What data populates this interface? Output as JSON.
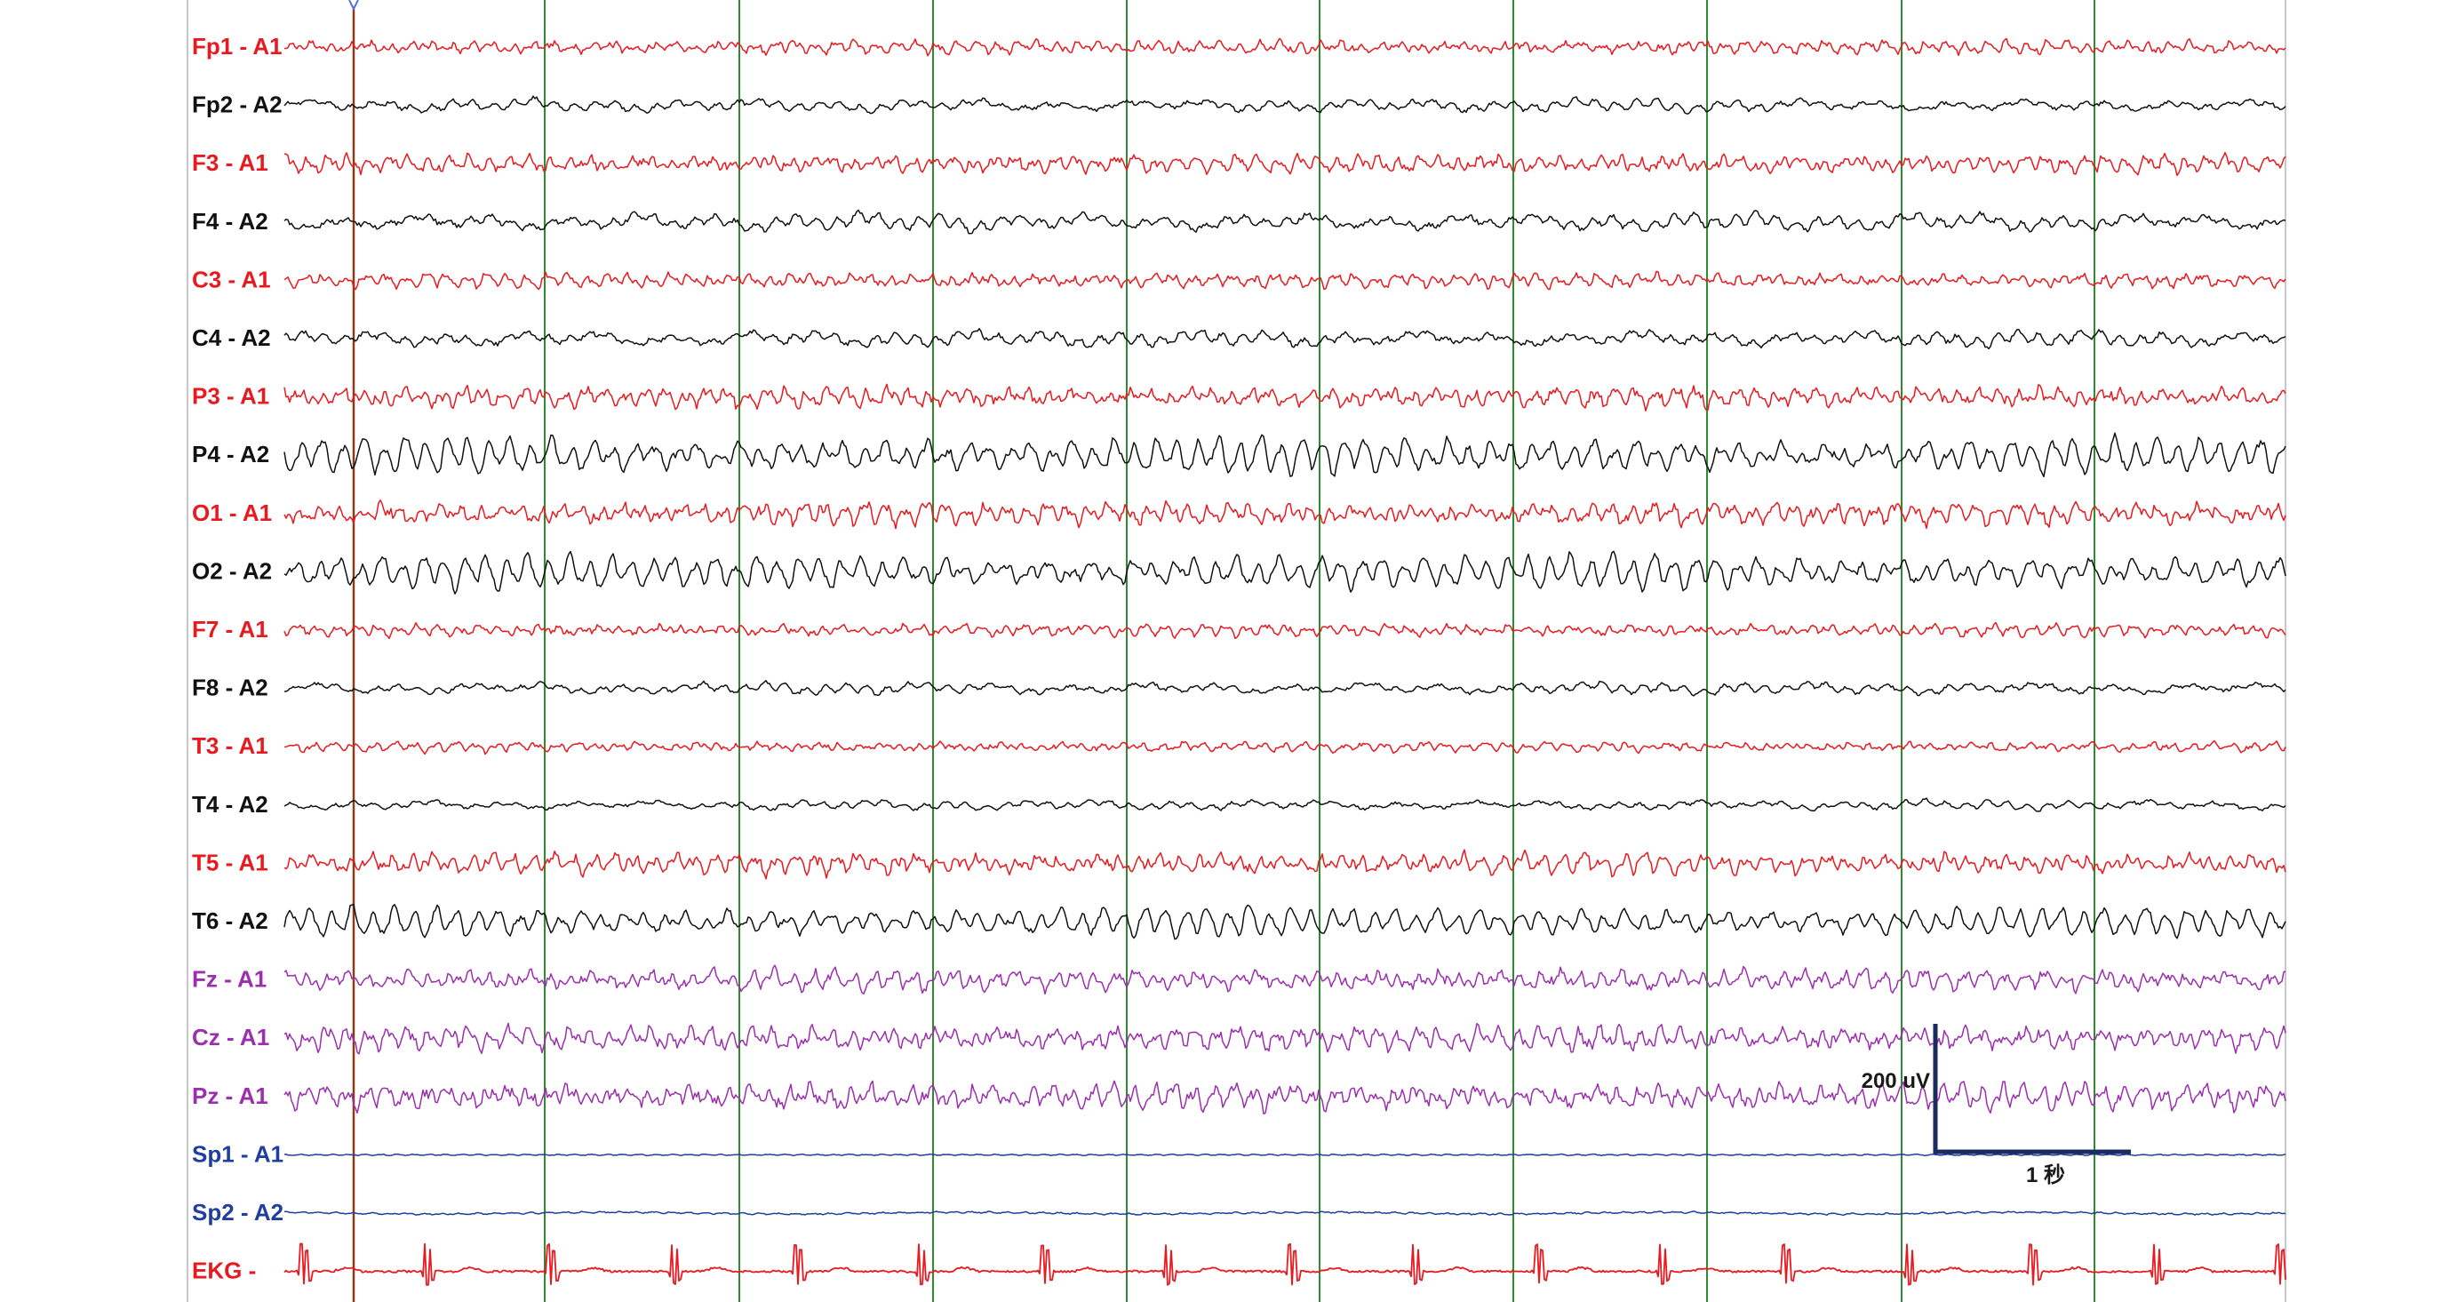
{
  "colors": {
    "background": "#ffffff",
    "red": "#e8191f",
    "black": "#111111",
    "purple": "#9b2fae",
    "blue": "#1f3f9f",
    "grid_line": "#2e8b2e",
    "cursor_line": "#8b3a1a",
    "border": "#c8c8c8",
    "scale_bar": "#1c2a5e"
  },
  "channels": [
    {
      "label": "Fp1 - A1",
      "color": "red",
      "style": "alpha-fast",
      "amp": 0.55
    },
    {
      "label": "Fp2 - A2",
      "color": "black",
      "style": "slow-wave",
      "amp": 0.6
    },
    {
      "label": "F3 - A1",
      "color": "red",
      "style": "alpha-fast",
      "amp": 0.75
    },
    {
      "label": "F4 - A2",
      "color": "black",
      "style": "slow-wave",
      "amp": 0.8
    },
    {
      "label": "C3 - A1",
      "color": "red",
      "style": "alpha-fast",
      "amp": 0.6
    },
    {
      "label": "C4 - A2",
      "color": "black",
      "style": "slow-wave",
      "amp": 0.75
    },
    {
      "label": "P3 - A1",
      "color": "red",
      "style": "alpha-fast",
      "amp": 0.85
    },
    {
      "label": "P4 - A2",
      "color": "black",
      "style": "alpha-big",
      "amp": 1.15
    },
    {
      "label": "O1 - A1",
      "color": "red",
      "style": "alpha-fast",
      "amp": 0.9
    },
    {
      "label": "O2 - A2",
      "color": "black",
      "style": "alpha-big",
      "amp": 1.1
    },
    {
      "label": "F7 - A1",
      "color": "red",
      "style": "alpha-fast",
      "amp": 0.5
    },
    {
      "label": "F8 - A2",
      "color": "black",
      "style": "slow-wave",
      "amp": 0.55
    },
    {
      "label": "T3 - A1",
      "color": "red",
      "style": "alpha-fast",
      "amp": 0.4
    },
    {
      "label": "T4 - A2",
      "color": "black",
      "style": "slow-wave",
      "amp": 0.45
    },
    {
      "label": "T5 - A1",
      "color": "red",
      "style": "alpha-fast",
      "amp": 0.85
    },
    {
      "label": "T6 - A2",
      "color": "black",
      "style": "alpha-big",
      "amp": 0.95
    },
    {
      "label": "Fz - A1",
      "color": "purple",
      "style": "alpha-fast",
      "amp": 0.85
    },
    {
      "label": "Cz - A1",
      "color": "purple",
      "style": "alpha-fast",
      "amp": 1.0
    },
    {
      "label": "Pz - A1",
      "color": "purple",
      "style": "alpha-fast",
      "amp": 1.05
    },
    {
      "label": "Sp1  - A1",
      "color": "blue",
      "style": "low-flat",
      "amp": 0.18
    },
    {
      "label": "Sp2  - A2",
      "color": "blue",
      "style": "low-drift",
      "amp": 0.25
    },
    {
      "label": "EKG  -",
      "color": "red",
      "style": "ekg",
      "amp": 1.0
    }
  ],
  "grid": {
    "seconds_visible": 10
  },
  "calibration": {
    "amplitude_label": "200 uV",
    "time_label": "1 秒"
  }
}
